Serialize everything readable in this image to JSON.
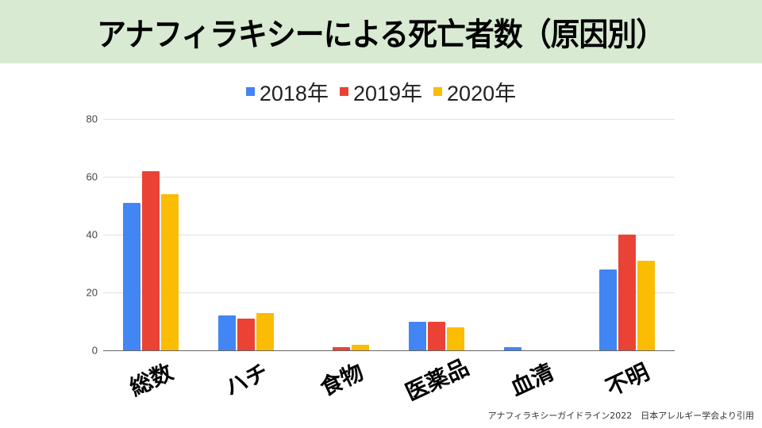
{
  "title": "アナフィラキシーによる死亡者数（原因別）",
  "footer": "アナフィラキシーガイドライン2022　日本アレルギー学会より引用",
  "chart_data": {
    "type": "bar",
    "title": "アナフィラキシーによる死亡者数（原因別）",
    "categories": [
      "総数",
      "ハチ",
      "食物",
      "医薬品",
      "血清",
      "不明"
    ],
    "series": [
      {
        "name": "2018年",
        "color": "#4285f4",
        "values": [
          51,
          12,
          0,
          10,
          1,
          28
        ]
      },
      {
        "name": "2019年",
        "color": "#ea4335",
        "values": [
          62,
          11,
          1,
          10,
          0,
          40
        ]
      },
      {
        "name": "2020年",
        "color": "#fbbc04",
        "values": [
          54,
          13,
          2,
          8,
          0,
          31
        ]
      }
    ],
    "xlabel": "",
    "ylabel": "",
    "ylim": [
      0,
      80
    ],
    "yticks": [
      0,
      20,
      40,
      60,
      80
    ],
    "grid": true,
    "legend_position": "top"
  }
}
